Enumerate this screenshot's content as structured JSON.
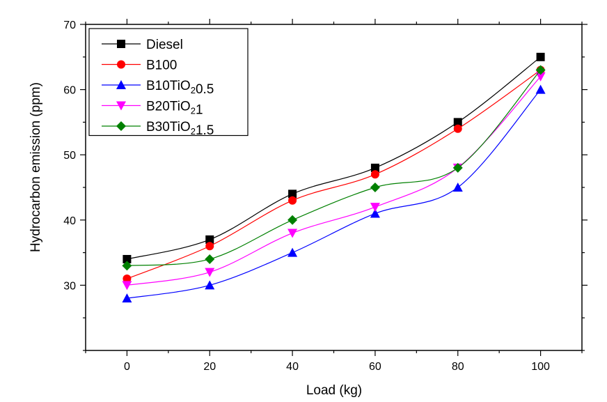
{
  "chart_data": {
    "type": "line",
    "xlabel": "Load (kg)",
    "ylabel": "Hydrocarbon emission (ppm)",
    "xlim": [
      -10,
      110
    ],
    "ylim": [
      20,
      70
    ],
    "xticks": [
      0,
      20,
      40,
      60,
      80,
      100
    ],
    "yticks": [
      30,
      40,
      50,
      60,
      70
    ],
    "legend_position": "top-left",
    "grid": false,
    "x": [
      0,
      20,
      40,
      60,
      80,
      100
    ],
    "series": [
      {
        "name": "Diesel",
        "marker": "square",
        "color": "#000000",
        "values": [
          34,
          37,
          44,
          48,
          55,
          65
        ]
      },
      {
        "name": "B100",
        "marker": "circle",
        "color": "#ff0000",
        "values": [
          31,
          36,
          43,
          47,
          54,
          63
        ]
      },
      {
        "name": "B10TiO₂0.5",
        "marker": "triangle-up",
        "color": "#0000ff",
        "values": [
          28,
          30,
          35,
          41,
          45,
          60
        ]
      },
      {
        "name": "B20TiO₂1",
        "marker": "triangle-down",
        "color": "#ff00ff",
        "values": [
          30,
          32,
          38,
          42,
          48,
          62
        ]
      },
      {
        "name": "B30TiO₂1.5",
        "marker": "diamond",
        "color": "#008000",
        "values": [
          33,
          34,
          40,
          45,
          48,
          63
        ]
      }
    ]
  }
}
